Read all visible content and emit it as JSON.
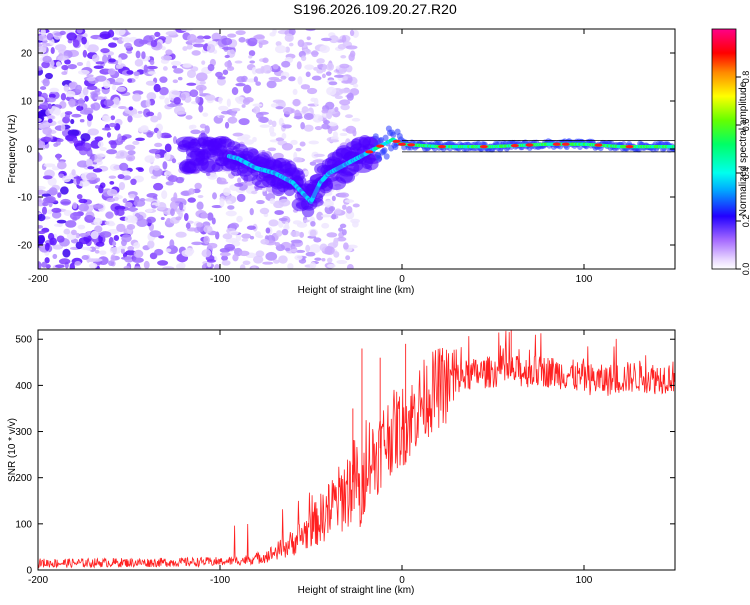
{
  "figure_title": "S196.2026.109.20.27.R20",
  "colors": {
    "snr_line": "#ff2020",
    "axes": "#000000"
  },
  "chart_data": [
    {
      "type": "heatmap",
      "title": "S196.2026.109.20.27.R20",
      "xlabel": "Height of straight line (km)",
      "ylabel": "Frequency (Hz)",
      "xlim": [
        -200,
        150
      ],
      "ylim": [
        -25,
        25
      ],
      "xticks": [
        -200,
        -100,
        0,
        100
      ],
      "yticks": [
        -20,
        -10,
        0,
        10,
        20
      ],
      "colorbar": {
        "label": "Normalized spectral amplitude",
        "range": [
          0,
          1
        ],
        "ticks": [
          0.0,
          0.2,
          0.4,
          0.6,
          0.8
        ],
        "colormap": "rainbow"
      },
      "ridge": [
        {
          "x": -100,
          "y": -1
        },
        {
          "x": -90,
          "y": -2
        },
        {
          "x": -80,
          "y": -4
        },
        {
          "x": -70,
          "y": -5
        },
        {
          "x": -60,
          "y": -7
        },
        {
          "x": -50,
          "y": -11
        },
        {
          "x": -45,
          "y": -7
        },
        {
          "x": -40,
          "y": -5
        },
        {
          "x": -35,
          "y": -4
        },
        {
          "x": -30,
          "y": -3
        },
        {
          "x": -25,
          "y": -2
        },
        {
          "x": -20,
          "y": -1
        },
        {
          "x": -15,
          "y": 0
        },
        {
          "x": -10,
          "y": 1
        },
        {
          "x": -5,
          "y": 2
        },
        {
          "x": 0,
          "y": 1
        },
        {
          "x": 20,
          "y": 0.5
        },
        {
          "x": 50,
          "y": 0.5
        },
        {
          "x": 80,
          "y": 1
        },
        {
          "x": 100,
          "y": 1
        },
        {
          "x": 120,
          "y": 0.5
        },
        {
          "x": 150,
          "y": 0.5
        }
      ]
    },
    {
      "type": "line",
      "xlabel": "Height of straight line (km)",
      "ylabel": "SNR (10 * v/v)",
      "xlim": [
        -200,
        150
      ],
      "ylim": [
        0,
        520
      ],
      "xticks": [
        -200,
        -100,
        0,
        100
      ],
      "yticks": [
        0,
        100,
        200,
        300,
        400,
        500
      ],
      "series": [
        {
          "name": "SNR",
          "x": [
            -200,
            -180,
            -160,
            -140,
            -120,
            -100,
            -90,
            -80,
            -75,
            -70,
            -65,
            -60,
            -55,
            -50,
            -45,
            -40,
            -35,
            -30,
            -25,
            -22,
            -20,
            -15,
            -10,
            -5,
            0,
            5,
            10,
            15,
            20,
            25,
            30,
            35,
            40,
            50,
            60,
            70,
            80,
            90,
            100,
            110,
            120,
            130,
            140,
            150
          ],
          "values": [
            15,
            15,
            16,
            16,
            17,
            18,
            20,
            25,
            30,
            38,
            48,
            60,
            75,
            90,
            110,
            130,
            150,
            175,
            200,
            120,
            260,
            240,
            280,
            300,
            310,
            330,
            360,
            380,
            395,
            405,
            415,
            420,
            425,
            430,
            430,
            430,
            430,
            425,
            415,
            410,
            415,
            420,
            415,
            420
          ]
        }
      ]
    }
  ]
}
